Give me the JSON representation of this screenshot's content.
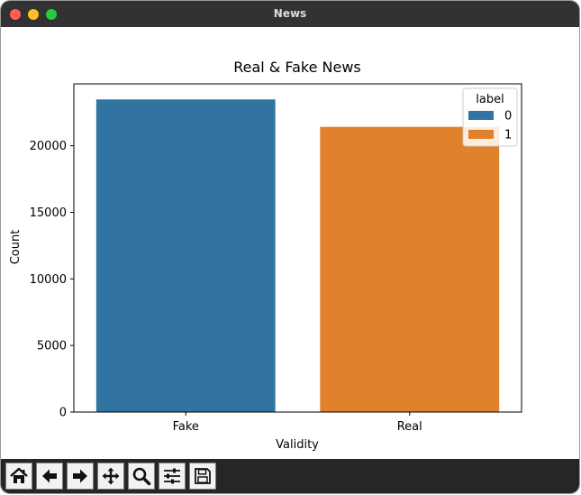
{
  "window": {
    "title": "News"
  },
  "chart_data": {
    "type": "bar",
    "title": "Real & Fake News",
    "xlabel": "Validity",
    "ylabel": "Count",
    "categories": [
      "Fake",
      "Real"
    ],
    "series": [
      {
        "name": "0",
        "values": [
          23480,
          null
        ],
        "color": "#3274a1"
      },
      {
        "name": "1",
        "values": [
          null,
          21420
        ],
        "color": "#e1812c"
      }
    ],
    "ylim": [
      0,
      24650
    ],
    "yticks": [
      0,
      5000,
      10000,
      15000,
      20000
    ],
    "legend": {
      "title": "label",
      "position": "top-right"
    },
    "grid": false
  },
  "toolbar": {
    "buttons": [
      {
        "name": "home-button",
        "icon": "home-icon"
      },
      {
        "name": "back-button",
        "icon": "arrow-left-icon"
      },
      {
        "name": "forward-button",
        "icon": "arrow-right-icon"
      },
      {
        "name": "pan-button",
        "icon": "move-icon"
      },
      {
        "name": "zoom-button",
        "icon": "magnifier-icon"
      },
      {
        "name": "configure-subplots-button",
        "icon": "sliders-icon"
      },
      {
        "name": "save-button",
        "icon": "floppy-icon"
      }
    ]
  }
}
